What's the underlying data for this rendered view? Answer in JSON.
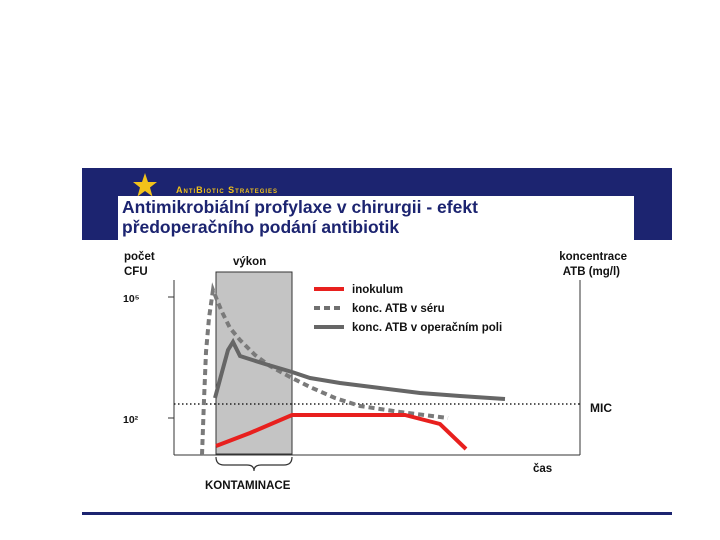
{
  "header": {
    "brand": "AntiBiotic Strategies",
    "title_line1": "Antimikrobiální profylaxe v chirurgii - efekt",
    "title_line2": "předoperačního podání antibiotik"
  },
  "diagram": {
    "left_axis_label_1": "počet",
    "left_axis_label_2": "CFU",
    "right_axis_label_1": "koncentrace",
    "right_axis_label_2": "ATB (mg/l)",
    "tick_high": "10⁵",
    "tick_low": "10²",
    "surgery_label": "výkon",
    "mic_label": "MIC",
    "time_label": "čas",
    "contamination_label": "KONTAMINACE",
    "legend": [
      {
        "label": "inokulum",
        "color": "#e8201e",
        "style": "solid"
      },
      {
        "label": "konc. ATB v séru",
        "color": "#707070",
        "style": "dashed"
      },
      {
        "label": "konc. ATB v operačním poli",
        "color": "#666666",
        "style": "solid"
      }
    ]
  },
  "colors": {
    "banner": "#1c2470",
    "brand_text": "#f2c21a",
    "surgery_band": "#c4c4c4"
  }
}
